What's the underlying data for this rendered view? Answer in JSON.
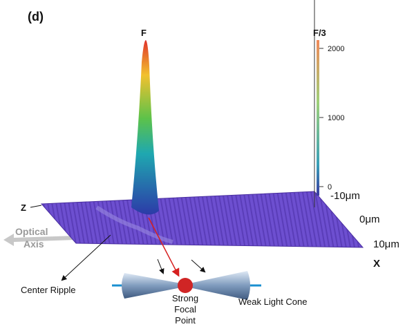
{
  "panel": "(d)",
  "peak_label": "F",
  "vertical_axis": {
    "label": "F/3",
    "ticks": [
      0,
      1000,
      2000
    ]
  },
  "axes": {
    "z": "Z",
    "x": "X",
    "x_ticks": [
      "-10μm",
      "0μm",
      "10μm"
    ]
  },
  "optical_axis": [
    "Optical",
    "Axis"
  ],
  "annotations": {
    "center_ripple": "Center Ripple",
    "focal_point": [
      "Strong",
      "Focal",
      "Point"
    ],
    "light_cone": "Weak Light Cone"
  }
}
